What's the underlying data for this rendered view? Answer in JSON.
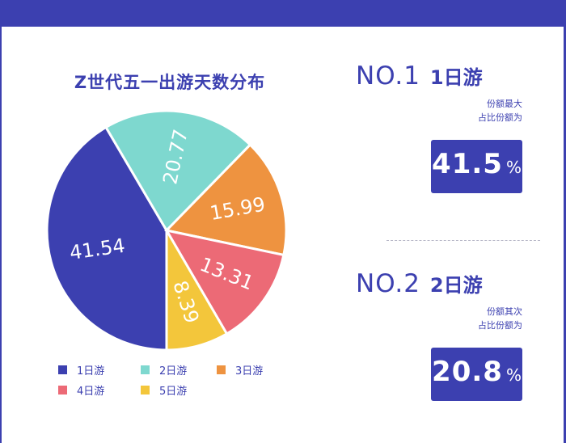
{
  "colors": {
    "brand": "#3c40b0",
    "slices": [
      "#3c40b0",
      "#7ed8cf",
      "#ee9340",
      "#ec6a76",
      "#f3c63b"
    ]
  },
  "chart_data": {
    "type": "pie",
    "title": "Z世代五一出游天数分布",
    "categories": [
      "1日游",
      "2日游",
      "3日游",
      "4日游",
      "5日游"
    ],
    "values": [
      41.54,
      20.77,
      15.99,
      13.31,
      8.39
    ],
    "labels": [
      "41.54",
      "20.77",
      "15.99",
      "13.31",
      "8.39"
    ],
    "legend_position": "bottom"
  },
  "highlights": [
    {
      "rank": "NO.1",
      "name": "1日游",
      "note_line1": "份额最大",
      "note_line2": "占比份额为",
      "value": "41.5",
      "unit": "%"
    },
    {
      "rank": "NO.2",
      "name": "2日游",
      "note_line1": "份额其次",
      "note_line2": "占比份额为",
      "value": "20.8",
      "unit": "%"
    }
  ]
}
